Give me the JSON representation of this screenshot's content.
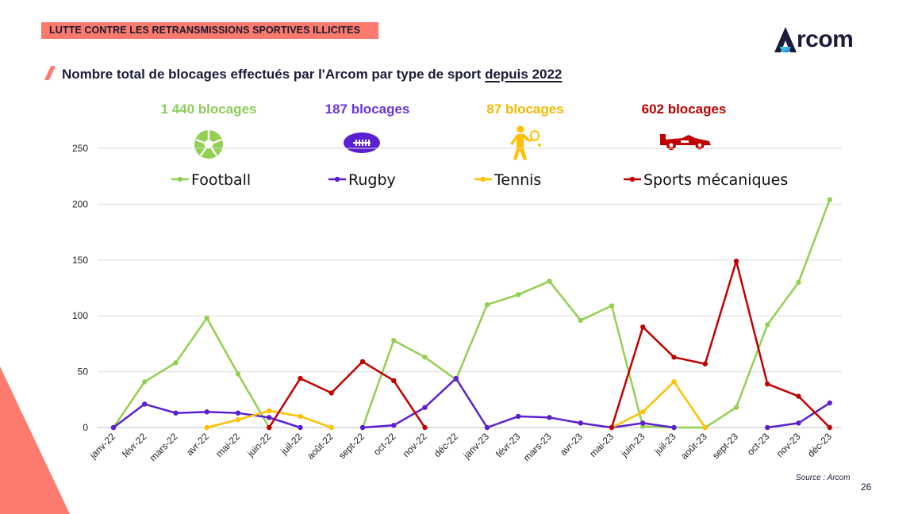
{
  "header": {
    "tag": "LUTTE CONTRE LES RETRANSMISSIONS SPORTIVES ILLICITES",
    "logo": "Arcom",
    "title_main": "Nombre total de blocages effectués par l'Arcom par type de sport ",
    "title_underlined": "depuis 2022"
  },
  "totals": [
    {
      "text": "1 440 blocages",
      "color": "#8dcc5a",
      "icon": "football-icon"
    },
    {
      "text": "187 blocages",
      "color": "#6a35d9",
      "icon": "rugby-ball-icon"
    },
    {
      "text": "87 blocages",
      "color": "#f5b800",
      "icon": "tennis-player-icon"
    },
    {
      "text": "602 blocages",
      "color": "#c00000",
      "icon": "race-car-icon"
    }
  ],
  "footer": {
    "source": "Source : Arcom",
    "page": "26"
  },
  "chart_data": {
    "type": "line",
    "categories": [
      "janv-22",
      "févr-22",
      "mars-22",
      "avr-22",
      "mai-22",
      "juin-22",
      "juil-22",
      "août-22",
      "sept-22",
      "oct-22",
      "nov-22",
      "déc-22",
      "janv-23",
      "févr-23",
      "mars-23",
      "avr-23",
      "mai-23",
      "juin-23",
      "juil-23",
      "août-23",
      "sept-23",
      "oct-23",
      "nov-23",
      "déc-23"
    ],
    "ylim": [
      0,
      250
    ],
    "yticks": [
      0,
      50,
      100,
      150,
      200,
      250
    ],
    "grid": true,
    "legend_position": "top",
    "series": [
      {
        "name": "Football",
        "color": "#92d050",
        "segments": [
          {
            "start": 0,
            "values": [
              0,
              41,
              58,
              98,
              48,
              0
            ]
          },
          {
            "start": 8,
            "values": [
              0,
              78,
              63,
              43,
              110,
              119,
              131,
              96,
              109,
              1,
              0,
              0,
              18,
              92,
              130,
              204
            ]
          }
        ]
      },
      {
        "name": "Rugby",
        "color": "#5b1fd1",
        "segments": [
          {
            "start": 0,
            "values": [
              0,
              21,
              13,
              14,
              13,
              9,
              0
            ]
          },
          {
            "start": 8,
            "values": [
              0,
              2,
              18,
              44,
              0,
              10,
              9,
              4,
              0,
              4,
              0
            ]
          },
          {
            "start": 21,
            "values": [
              0,
              4,
              22
            ]
          }
        ]
      },
      {
        "name": "Tennis",
        "color": "#ffc000",
        "segments": [
          {
            "start": 3,
            "values": [
              0,
              7,
              15,
              10,
              0
            ]
          },
          {
            "start": 16,
            "values": [
              0,
              14,
              41,
              0
            ]
          }
        ]
      },
      {
        "name": "Sports mécaniques",
        "color": "#c00000",
        "segments": [
          {
            "start": 5,
            "values": [
              0,
              44,
              31,
              59,
              42,
              0
            ]
          },
          {
            "start": 16,
            "values": [
              0,
              90,
              63,
              57,
              149,
              39,
              28,
              0
            ]
          }
        ]
      }
    ]
  }
}
